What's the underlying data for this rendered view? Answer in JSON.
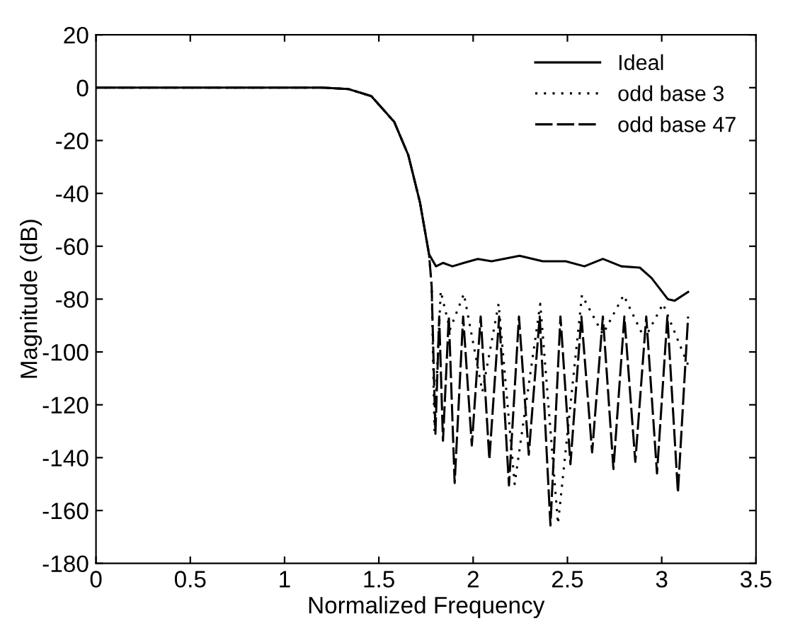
{
  "chart_data": {
    "type": "line",
    "xlabel": "Normalized Frequency",
    "ylabel": "Magnitude (dB)",
    "xlim": [
      0,
      3.5
    ],
    "xticks": [
      0,
      0.5,
      1,
      1.5,
      2,
      2.5,
      3,
      3.5
    ],
    "ylim": [
      -180,
      20
    ],
    "yticks": [
      20,
      0,
      -20,
      -40,
      -60,
      -80,
      -100,
      -120,
      -140,
      -160,
      -180
    ],
    "grid": false,
    "legend": "top right",
    "series": [
      {
        "name": "Ideal",
        "color": "#000000",
        "line_style": "solid",
        "x": [
          0,
          0.5,
          1,
          1.2,
          1.338,
          1.46,
          1.582,
          1.656,
          1.718,
          1.766,
          1.803,
          1.84,
          1.89,
          1.951,
          2.025,
          2.098,
          2.246,
          2.369,
          2.491,
          2.59,
          2.688,
          2.786,
          2.884,
          2.946,
          3.032,
          3.069,
          3.14
        ],
        "values": [
          0,
          0,
          0,
          0,
          -0.5,
          -3.2,
          -13,
          -25.5,
          -43.4,
          -63,
          -67.6,
          -66.3,
          -67.6,
          -66.3,
          -64.8,
          -65.7,
          -63.6,
          -65.7,
          -65.7,
          -67.6,
          -64.8,
          -67.6,
          -68.1,
          -72,
          -80,
          -80.6,
          -77.3
        ]
      },
      {
        "name": "odd base 3",
        "color": "#000000",
        "line_style": "dotted",
        "x": [
          0,
          0.5,
          1,
          1.2,
          1.338,
          1.46,
          1.582,
          1.656,
          1.718,
          1.766,
          1.78,
          1.795,
          1.828,
          1.877,
          1.951,
          2.049,
          2.135,
          2.22,
          2.356,
          2.45,
          2.577,
          2.688,
          2.798,
          2.909,
          3.007,
          3.14
        ],
        "values": [
          0,
          0,
          0,
          0,
          -0.5,
          -3.2,
          -13,
          -25.5,
          -43.4,
          -63,
          -75,
          -130,
          -77,
          -91.5,
          -78,
          -115,
          -81.8,
          -150,
          -81.8,
          -165,
          -78.5,
          -93.3,
          -78.5,
          -95,
          -81.8,
          -105
        ]
      },
      {
        "name": "odd base 47",
        "color": "#000000",
        "line_style": "dashed",
        "x": [
          0,
          0.5,
          1,
          1.2,
          1.338,
          1.46,
          1.582,
          1.656,
          1.718,
          1.766,
          1.78,
          1.8,
          1.82,
          1.84,
          1.871,
          1.902,
          1.947,
          1.993,
          2.04,
          2.086,
          2.138,
          2.19,
          2.243,
          2.295,
          2.353,
          2.41,
          2.463,
          2.516,
          2.574,
          2.631,
          2.688,
          2.744,
          2.802,
          2.86,
          2.918,
          2.975,
          3.03,
          3.086,
          3.14
        ],
        "values": [
          0,
          0,
          0,
          0,
          -0.5,
          -3.2,
          -13,
          -25.5,
          -43.4,
          -63,
          -75,
          -131,
          -86.6,
          -133.6,
          -86.6,
          -149.6,
          -86.6,
          -135.4,
          -86.6,
          -140.7,
          -86.6,
          -150.5,
          -86.6,
          -138.9,
          -86.6,
          -165.7,
          -86.6,
          -142.5,
          -86.6,
          -138,
          -86.6,
          -144.3,
          -86.6,
          -141.6,
          -86.6,
          -146,
          -86.6,
          -153.2,
          -86.6
        ]
      }
    ]
  }
}
